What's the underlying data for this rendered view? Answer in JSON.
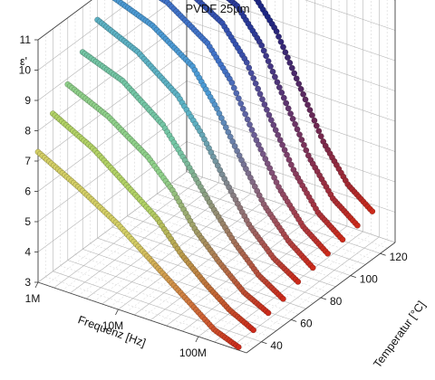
{
  "chart_data": {
    "type": "scatter3d",
    "title": "PVDF 25µm",
    "xlabel": "Frequenz [Hz]",
    "ylabel": "Temperatur [°C]",
    "zlabel": "ε'",
    "x_scale": "log",
    "x_ticks": [
      "1M",
      "10M",
      "100M"
    ],
    "y_ticks": [
      "40",
      "60",
      "80",
      "100",
      "120"
    ],
    "z_ticks": [
      "3",
      "4",
      "5",
      "6",
      "7",
      "8",
      "9",
      "10",
      "11"
    ],
    "xlim_log10": [
      6,
      8.6
    ],
    "ylim": [
      30,
      130
    ],
    "zlim": [
      3,
      11
    ],
    "grid": true,
    "series": [
      {
        "temperature": 30,
        "color": "#d4cf66",
        "values": [
          [
            6.0,
            7.3
          ],
          [
            6.5,
            6.6
          ],
          [
            7.0,
            5.8
          ],
          [
            7.3,
            5.2
          ],
          [
            7.6,
            4.6
          ],
          [
            7.9,
            4.0
          ],
          [
            8.2,
            3.4
          ],
          [
            8.5,
            3.1
          ]
        ]
      },
      {
        "temperature": 40,
        "color": "#b2d266",
        "values": [
          [
            6.0,
            8.2
          ],
          [
            6.5,
            7.5
          ],
          [
            7.0,
            6.5
          ],
          [
            7.3,
            5.9
          ],
          [
            7.6,
            5.0
          ],
          [
            7.9,
            4.3
          ],
          [
            8.2,
            3.7
          ],
          [
            8.5,
            3.3
          ]
        ]
      },
      {
        "temperature": 50,
        "color": "#8fd08a",
        "values": [
          [
            6.0,
            8.8
          ],
          [
            6.5,
            8.2
          ],
          [
            7.0,
            7.3
          ],
          [
            7.3,
            6.5
          ],
          [
            7.6,
            5.4
          ],
          [
            7.9,
            4.6
          ],
          [
            8.2,
            3.9
          ],
          [
            8.5,
            3.5
          ]
        ]
      },
      {
        "temperature": 60,
        "color": "#74c6a5",
        "values": [
          [
            6.0,
            9.5
          ],
          [
            6.5,
            9.0
          ],
          [
            7.0,
            8.0
          ],
          [
            7.3,
            7.0
          ],
          [
            7.6,
            5.9
          ],
          [
            7.9,
            4.9
          ],
          [
            8.2,
            4.1
          ],
          [
            8.5,
            3.6
          ]
        ]
      },
      {
        "temperature": 70,
        "color": "#5db2c4",
        "values": [
          [
            6.0,
            10.2
          ],
          [
            6.5,
            9.6
          ],
          [
            7.0,
            8.6
          ],
          [
            7.3,
            7.6
          ],
          [
            7.6,
            6.3
          ],
          [
            7.9,
            5.1
          ],
          [
            8.2,
            4.3
          ],
          [
            8.5,
            3.8
          ]
        ]
      },
      {
        "temperature": 80,
        "color": "#4c9ad4",
        "values": [
          [
            6.0,
            10.6
          ],
          [
            6.5,
            10.1
          ],
          [
            7.0,
            9.2
          ],
          [
            7.3,
            8.1
          ],
          [
            7.6,
            6.7
          ],
          [
            7.9,
            5.4
          ],
          [
            8.2,
            4.5
          ],
          [
            8.5,
            3.9
          ]
        ]
      },
      {
        "temperature": 90,
        "color": "#4173c8",
        "values": [
          [
            6.0,
            10.9
          ],
          [
            6.5,
            10.5
          ],
          [
            7.0,
            9.6
          ],
          [
            7.3,
            8.6
          ],
          [
            7.6,
            7.0
          ],
          [
            7.9,
            5.6
          ],
          [
            8.2,
            4.6
          ],
          [
            8.5,
            4.0
          ]
        ]
      },
      {
        "temperature": 100,
        "color": "#3552b0",
        "values": [
          [
            6.0,
            11.0
          ],
          [
            6.5,
            10.7
          ],
          [
            7.0,
            9.9
          ],
          [
            7.3,
            8.9
          ],
          [
            7.6,
            7.3
          ],
          [
            7.9,
            5.8
          ],
          [
            8.2,
            4.7
          ],
          [
            8.5,
            4.1
          ]
        ]
      },
      {
        "temperature": 110,
        "color": "#2a3a98",
        "values": [
          [
            6.0,
            11.0
          ],
          [
            6.5,
            10.8
          ],
          [
            7.0,
            10.1
          ],
          [
            7.3,
            9.1
          ],
          [
            7.6,
            7.5
          ],
          [
            7.9,
            5.9
          ],
          [
            8.2,
            4.8
          ],
          [
            8.5,
            4.2
          ]
        ]
      },
      {
        "temperature": 120,
        "color": "#1d2784",
        "values": [
          [
            6.0,
            11.0
          ],
          [
            6.5,
            10.9
          ],
          [
            7.0,
            10.2
          ],
          [
            7.3,
            9.2
          ],
          [
            7.6,
            7.6
          ],
          [
            7.9,
            6.0
          ],
          [
            8.2,
            4.9
          ],
          [
            8.5,
            4.3
          ]
        ]
      }
    ],
    "low_value_color": "#cc2a1a"
  }
}
